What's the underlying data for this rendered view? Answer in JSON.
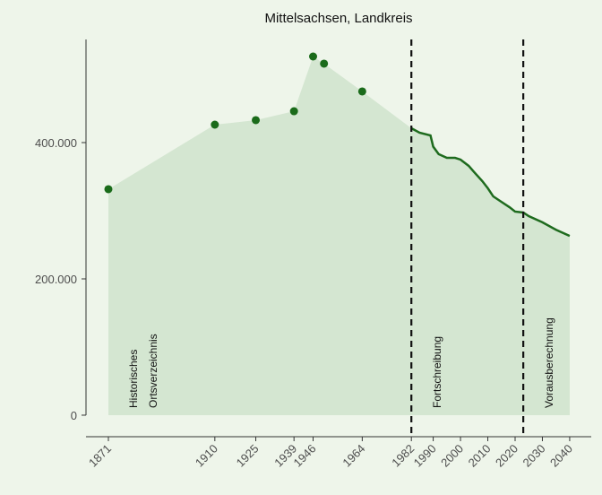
{
  "chart_data": {
    "type": "area",
    "title": "Mittelsachsen, Landkreis",
    "series": [
      {
        "style": "points",
        "color": "#1a6b1a",
        "x": [
          1871,
          1910,
          1925,
          1939,
          1946,
          1950,
          1964
        ],
        "values": [
          331600,
          426300,
          432900,
          446000,
          526300,
          515800,
          475000
        ]
      },
      {
        "style": "line",
        "color": "#1e6b1e",
        "x": [
          1982,
          1985,
          1989,
          1990,
          1992,
          1995,
          1998,
          2000,
          2003,
          2005,
          2008,
          2010,
          2012,
          2015,
          2018,
          2020,
          2023,
          2025,
          2030,
          2035,
          2040
        ],
        "values": [
          421000,
          414500,
          410500,
          394000,
          383000,
          377600,
          377600,
          375000,
          365800,
          356600,
          343400,
          333000,
          321000,
          313000,
          305000,
          298700,
          297400,
          292100,
          283000,
          272000,
          263000
        ]
      }
    ],
    "area_color": "#d4e6d1",
    "vlines": [
      1982,
      2023
    ],
    "annotations": [
      [
        "Historisches",
        "Ortsverzeichnis"
      ],
      [
        "Fortschreibung"
      ],
      [
        "Vorausberechnung"
      ]
    ],
    "xlim": [
      1862.8,
      2047.9
    ],
    "ylim": [
      -31600,
      551300
    ],
    "xticks": [
      1871,
      1910,
      1925,
      1939,
      1946,
      1964,
      1982,
      1990,
      2000,
      2010,
      2020,
      2030,
      2040
    ],
    "yticks": [
      0,
      {
        "value": 200000,
        "label": "200.000"
      },
      {
        "value": 400000,
        "label": "400.000"
      }
    ]
  }
}
